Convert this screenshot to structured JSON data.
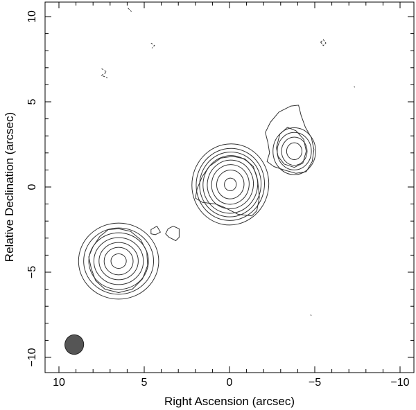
{
  "chart_data": {
    "type": "contour",
    "xlabel": "Right Ascension  (arcsec)",
    "ylabel": "Relative Declination  (arcsec)",
    "xlim": [
      11,
      -11
    ],
    "ylim": [
      -11,
      10.5
    ],
    "x_ticks": [
      10,
      5,
      0,
      -5,
      -10
    ],
    "x_tick_labels": [
      "10",
      "5",
      "0",
      "−5",
      "−10"
    ],
    "y_ticks": [
      10,
      5,
      0,
      -5,
      -10
    ],
    "y_tick_labels": [
      "10",
      "5",
      "0",
      "−5",
      "−10"
    ],
    "grid": false,
    "components": [
      {
        "label": "core",
        "ra": -0.05,
        "dec": 0.15,
        "peak_radius": 0.35,
        "ring_radii": [
          0.35,
          0.8,
          1.1,
          1.35,
          1.6,
          1.8,
          2.0,
          2.25
        ],
        "stretch": 1.06,
        "tilt_deg": 10
      },
      {
        "label": "northwest-component",
        "ra": -3.8,
        "dec": 2.1,
        "peak_radius": 0.45,
        "ring_radii": [
          0.45,
          0.75,
          1.0,
          1.25
        ],
        "stretch": 1.1,
        "tilt_deg": 0
      },
      {
        "label": "southeast-component",
        "ra": 6.5,
        "dec": -4.35,
        "peak_radius": 0.45,
        "ring_radii": [
          0.45,
          0.85,
          1.15,
          1.45,
          1.75,
          2.05,
          2.35
        ],
        "stretch": 0.95,
        "tilt_deg": 0
      }
    ],
    "outer_contours": [
      {
        "label": "core-envelope",
        "points": [
          [
            1.6,
            -0.9
          ],
          [
            0.8,
            -1.0
          ],
          [
            0.3,
            -1.2
          ],
          [
            -0.5,
            -1.6
          ],
          [
            -1.3,
            -1.7
          ],
          [
            -1.6,
            -1.4
          ],
          [
            -1.75,
            -0.6
          ],
          [
            -1.65,
            0.4
          ],
          [
            -1.4,
            1.2
          ],
          [
            -0.9,
            1.65
          ],
          [
            -0.2,
            1.8
          ],
          [
            0.5,
            1.7
          ],
          [
            1.2,
            1.2
          ],
          [
            1.6,
            0.6
          ],
          [
            1.9,
            -0.1
          ],
          [
            2.0,
            -0.65
          ]
        ]
      },
      {
        "label": "northwest-envelope",
        "points": [
          [
            -2.1,
            3.2
          ],
          [
            -2.25,
            2.6
          ],
          [
            -2.35,
            2.0
          ],
          [
            -2.2,
            1.5
          ],
          [
            -2.6,
            1.2
          ],
          [
            -3.2,
            1.0
          ],
          [
            -3.9,
            0.8
          ],
          [
            -4.5,
            0.9
          ],
          [
            -4.85,
            1.5
          ],
          [
            -4.95,
            2.2
          ],
          [
            -4.8,
            2.9
          ],
          [
            -4.45,
            3.5
          ],
          [
            -4.2,
            4.2
          ],
          [
            -4.05,
            4.8
          ],
          [
            -3.6,
            4.75
          ],
          [
            -2.9,
            4.4
          ],
          [
            -2.4,
            3.8
          ]
        ]
      },
      {
        "label": "northwest-inner",
        "points": [
          [
            -2.75,
            2.3
          ],
          [
            -2.95,
            3.1
          ],
          [
            -3.4,
            3.5
          ],
          [
            -3.9,
            3.3
          ],
          [
            -4.35,
            2.8
          ],
          [
            -4.5,
            2.1
          ],
          [
            -4.3,
            1.4
          ],
          [
            -3.8,
            1.15
          ],
          [
            -3.2,
            1.35
          ],
          [
            -2.85,
            1.8
          ]
        ]
      },
      {
        "label": "southeast-envelope",
        "points": [
          [
            8.1,
            -4.8
          ],
          [
            7.85,
            -5.5
          ],
          [
            7.3,
            -6.0
          ],
          [
            6.5,
            -6.2
          ],
          [
            5.7,
            -6.0
          ],
          [
            5.1,
            -5.4
          ],
          [
            4.8,
            -4.6
          ],
          [
            4.85,
            -3.8
          ],
          [
            5.2,
            -3.1
          ],
          [
            5.8,
            -2.6
          ],
          [
            6.5,
            -2.45
          ],
          [
            7.1,
            -2.5
          ],
          [
            7.6,
            -2.9
          ],
          [
            8.0,
            -3.5
          ],
          [
            8.25,
            -4.1
          ]
        ]
      },
      {
        "label": "small-contour-1",
        "points": [
          [
            4.6,
            -2.5
          ],
          [
            4.25,
            -2.3
          ],
          [
            4.05,
            -2.65
          ],
          [
            4.35,
            -2.8
          ],
          [
            4.6,
            -2.75
          ]
        ]
      },
      {
        "label": "small-contour-2",
        "points": [
          [
            3.6,
            -2.45
          ],
          [
            3.3,
            -2.3
          ],
          [
            2.95,
            -2.45
          ],
          [
            2.95,
            -2.95
          ],
          [
            3.15,
            -3.15
          ],
          [
            3.55,
            -2.95
          ],
          [
            3.75,
            -2.75
          ]
        ]
      }
    ],
    "negative_contours": [
      {
        "label": "negative-contour-1",
        "points": [
          [
            5.95,
            10.5
          ],
          [
            5.75,
            10.3
          ]
        ],
        "closed": false
      },
      {
        "label": "negative-contour-2",
        "points": [
          [
            4.6,
            8.45
          ],
          [
            4.4,
            8.3
          ],
          [
            4.55,
            8.15
          ]
        ],
        "closed": false
      },
      {
        "label": "negative-contour-3",
        "points": [
          [
            7.5,
            6.95
          ],
          [
            7.2,
            6.75
          ],
          [
            7.5,
            6.55
          ],
          [
            7.15,
            6.4
          ]
        ],
        "closed": false
      },
      {
        "label": "negative-contour-4",
        "points": [
          [
            -5.35,
            8.5
          ],
          [
            -5.5,
            8.65
          ],
          [
            -5.65,
            8.45
          ],
          [
            -5.5,
            8.3
          ]
        ],
        "closed": true
      },
      {
        "label": "negative-contour-5",
        "points": [
          [
            -7.3,
            5.9
          ],
          [
            -7.35,
            5.85
          ]
        ],
        "closed": false
      },
      {
        "label": "negative-contour-6",
        "points": [
          [
            -4.75,
            -7.5
          ],
          [
            -4.8,
            -7.55
          ]
        ],
        "closed": false
      }
    ],
    "beam": {
      "ra": 9.1,
      "dec": -9.25,
      "major": 1.15,
      "minor": 1.0,
      "pa_deg": 10,
      "color": "#555555"
    }
  }
}
